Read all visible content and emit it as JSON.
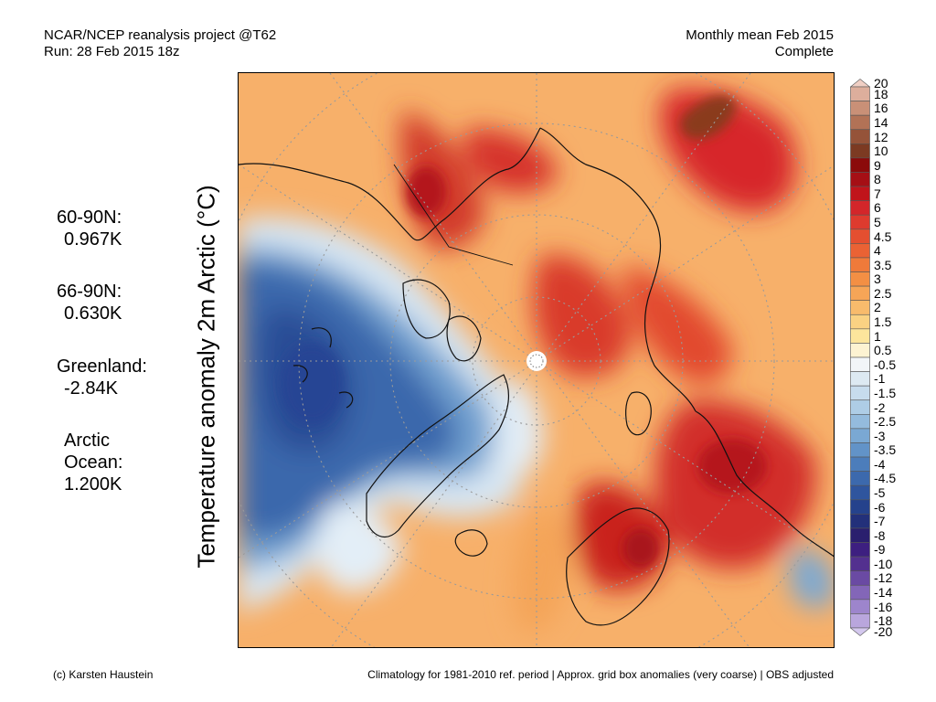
{
  "header": {
    "left_line1": "NCAR/NCEP reanalysis project @T62",
    "left_line2": "Run: 28 Feb 2015 18z",
    "right_line1": "Monthly mean Feb 2015",
    "right_line2": "Complete"
  },
  "axis_title": "Temperature anomaly 2m Arctic (°C)",
  "stats": [
    {
      "label": "60-90N:",
      "value": "0.967K"
    },
    {
      "label": "66-90N:",
      "value": "0.630K"
    },
    {
      "label": "Greenland:",
      "value": "-2.84K"
    },
    {
      "label": "Arctic",
      "label2": "Ocean:",
      "value": "1.200K"
    }
  ],
  "colorbar": {
    "labels": [
      "20",
      "18",
      "16",
      "14",
      "12",
      "10",
      "9",
      "8",
      "7",
      "6",
      "5",
      "4.5",
      "4",
      "3.5",
      "3",
      "2.5",
      "2",
      "1.5",
      "1",
      "0.5",
      "-0.5",
      "-1",
      "-1.5",
      "-2",
      "-2.5",
      "-3",
      "-3.5",
      "-4",
      "-4.5",
      "-5",
      "-6",
      "-7",
      "-8",
      "-9",
      "-10",
      "-12",
      "-14",
      "-16",
      "-18",
      "-20"
    ],
    "colors": [
      "#f0cfc4",
      "#ddae9c",
      "#c99077",
      "#b27256",
      "#955339",
      "#7c3a22",
      "#8b0a0a",
      "#a50f15",
      "#c0141b",
      "#d3262a",
      "#de3b2e",
      "#e44f30",
      "#ea6234",
      "#ef7a3a",
      "#f38f44",
      "#f6a557",
      "#f8bb6c",
      "#fad283",
      "#fce59c",
      "#fdf3d2",
      "#f2f5f8",
      "#dde9f2",
      "#c7dced",
      "#aecde6",
      "#94bbdd",
      "#7aa8d3",
      "#6293c8",
      "#4c7dbb",
      "#3c69ad",
      "#2f559e",
      "#25428c",
      "#23307a",
      "#2a1f6e",
      "#3d1f80",
      "#53308f",
      "#6a4aa3",
      "#8366b8",
      "#9d85cc",
      "#b9a6dd",
      "#d4c8ee"
    ]
  },
  "footer": {
    "left": "(c) Karsten Haustein",
    "right": "Climatology for 1981-2010 ref. period | Approx. grid box anomalies (very coarse) | OBS adjusted"
  }
}
